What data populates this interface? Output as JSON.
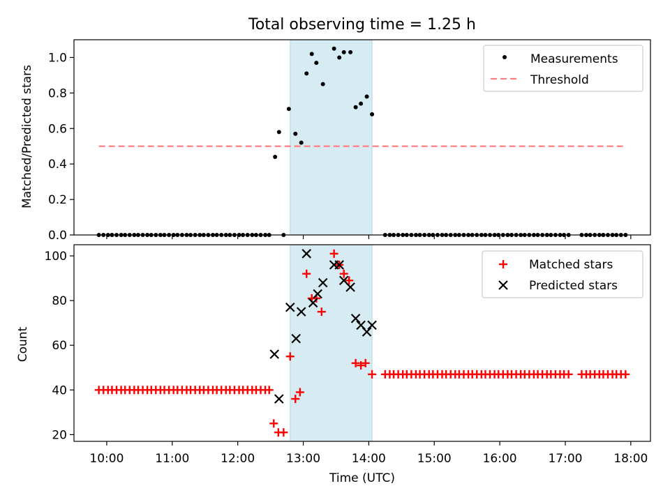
{
  "title": "Total observing time = 1.25 h",
  "chart_data": [
    {
      "type": "scatter",
      "ylabel": "Matched/Predicted stars",
      "xlim": [
        9.5,
        18.3
      ],
      "ylim": [
        0,
        1.1
      ],
      "yticks": [
        "0.0",
        "0.2",
        "0.4",
        "0.6",
        "0.8",
        "1.0"
      ],
      "ytick_values": [
        0,
        0.2,
        0.4,
        0.6,
        0.8,
        1.0
      ],
      "shaded_window": [
        12.8,
        14.05
      ],
      "legend": {
        "placement": "top-right",
        "entries": [
          "Measurements",
          "Threshold"
        ]
      },
      "threshold": {
        "name": "Threshold",
        "value": 0.5,
        "x_range": [
          9.88,
          17.93
        ],
        "color": "#ff8080",
        "style": "dashed"
      },
      "measurements": {
        "name": "Measurements",
        "color": "#000000",
        "zero_x": [
          9.88,
          9.95,
          10.02,
          10.08,
          10.15,
          10.22,
          10.28,
          10.35,
          10.42,
          10.48,
          10.55,
          10.62,
          10.68,
          10.75,
          10.82,
          10.88,
          10.95,
          11.02,
          11.08,
          11.15,
          11.22,
          11.28,
          11.35,
          11.42,
          11.48,
          11.55,
          11.62,
          11.68,
          11.75,
          11.82,
          11.88,
          11.95,
          12.02,
          12.08,
          12.15,
          12.22,
          12.28,
          12.35,
          12.42,
          12.48,
          12.7,
          14.25,
          14.32,
          14.38,
          14.45,
          14.52,
          14.58,
          14.65,
          14.72,
          14.78,
          14.85,
          14.92,
          14.98,
          15.05,
          15.12,
          15.18,
          15.25,
          15.32,
          15.38,
          15.45,
          15.52,
          15.58,
          15.65,
          15.72,
          15.78,
          15.85,
          15.92,
          15.98,
          16.05,
          16.12,
          16.18,
          16.25,
          16.32,
          16.38,
          16.45,
          16.52,
          16.58,
          16.65,
          16.72,
          16.78,
          16.85,
          16.92,
          16.98,
          17.05,
          17.25,
          17.32,
          17.38,
          17.45,
          17.52,
          17.58,
          17.65,
          17.72,
          17.78,
          17.85,
          17.92
        ],
        "points": [
          [
            12.57,
            0.44
          ],
          [
            12.63,
            0.58
          ],
          [
            12.78,
            0.71
          ],
          [
            12.88,
            0.57
          ],
          [
            12.97,
            0.52
          ],
          [
            13.05,
            0.91
          ],
          [
            13.13,
            1.02
          ],
          [
            13.2,
            0.97
          ],
          [
            13.3,
            0.85
          ],
          [
            13.47,
            1.05
          ],
          [
            13.55,
            1.0
          ],
          [
            13.62,
            1.03
          ],
          [
            13.72,
            1.03
          ],
          [
            13.8,
            0.72
          ],
          [
            13.88,
            0.74
          ],
          [
            13.97,
            0.78
          ],
          [
            14.05,
            0.68
          ]
        ]
      }
    },
    {
      "type": "scatter",
      "ylabel": "Count",
      "xlabel": "Time (UTC)",
      "xlim": [
        9.5,
        18.3
      ],
      "ylim": [
        17,
        105
      ],
      "xticks": [
        "10:00",
        "11:00",
        "12:00",
        "13:00",
        "14:00",
        "15:00",
        "16:00",
        "17:00",
        "18:00"
      ],
      "xtick_values": [
        10,
        11,
        12,
        13,
        14,
        15,
        16,
        17,
        18
      ],
      "yticks": [
        "20",
        "40",
        "60",
        "80",
        "100"
      ],
      "ytick_values": [
        20,
        40,
        60,
        80,
        100
      ],
      "shaded_window": [
        12.8,
        14.05
      ],
      "legend": {
        "placement": "top-right",
        "entries": [
          "Matched stars",
          "Predicted stars"
        ]
      },
      "series": [
        {
          "name": "Matched stars",
          "color": "#ff0000",
          "marker": "plus",
          "baseline_before": {
            "value": 40,
            "x": [
              9.88,
              9.95,
              10.02,
              10.08,
              10.15,
              10.22,
              10.28,
              10.35,
              10.42,
              10.48,
              10.55,
              10.62,
              10.68,
              10.75,
              10.82,
              10.88,
              10.95,
              11.02,
              11.08,
              11.15,
              11.22,
              11.28,
              11.35,
              11.42,
              11.48,
              11.55,
              11.62,
              11.68,
              11.75,
              11.82,
              11.88,
              11.95,
              12.02,
              12.08,
              12.15,
              12.22,
              12.28,
              12.35,
              12.42,
              12.48
            ]
          },
          "baseline_after": {
            "value": 47,
            "x": [
              14.25,
              14.32,
              14.38,
              14.45,
              14.52,
              14.58,
              14.65,
              14.72,
              14.78,
              14.85,
              14.92,
              14.98,
              15.05,
              15.12,
              15.18,
              15.25,
              15.32,
              15.38,
              15.45,
              15.52,
              15.58,
              15.65,
              15.72,
              15.78,
              15.85,
              15.92,
              15.98,
              16.05,
              16.12,
              16.18,
              16.25,
              16.32,
              16.38,
              16.45,
              16.52,
              16.58,
              16.65,
              16.72,
              16.78,
              16.85,
              16.92,
              16.98,
              17.05,
              17.25,
              17.32,
              17.38,
              17.45,
              17.52,
              17.58,
              17.65,
              17.72,
              17.78,
              17.85,
              17.92
            ]
          },
          "points": [
            [
              12.55,
              25
            ],
            [
              12.62,
              21
            ],
            [
              12.7,
              21
            ],
            [
              12.8,
              55
            ],
            [
              12.88,
              36
            ],
            [
              12.95,
              39
            ],
            [
              13.05,
              92
            ],
            [
              13.13,
              81
            ],
            [
              13.2,
              81
            ],
            [
              13.28,
              75
            ],
            [
              13.47,
              101
            ],
            [
              13.55,
              96
            ],
            [
              13.62,
              92
            ],
            [
              13.7,
              89
            ],
            [
              13.8,
              52
            ],
            [
              13.88,
              51
            ],
            [
              13.95,
              52
            ],
            [
              14.05,
              47
            ]
          ]
        },
        {
          "name": "Predicted stars",
          "color": "#000000",
          "marker": "x",
          "points": [
            [
              12.56,
              56
            ],
            [
              12.63,
              36
            ],
            [
              12.8,
              77
            ],
            [
              12.89,
              63
            ],
            [
              12.97,
              75
            ],
            [
              13.05,
              101
            ],
            [
              13.15,
              79
            ],
            [
              13.22,
              83
            ],
            [
              13.3,
              88
            ],
            [
              13.47,
              96
            ],
            [
              13.55,
              96
            ],
            [
              13.62,
              89
            ],
            [
              13.72,
              86
            ],
            [
              13.8,
              72
            ],
            [
              13.88,
              69
            ],
            [
              13.97,
              66
            ],
            [
              14.05,
              69
            ]
          ]
        }
      ]
    }
  ]
}
